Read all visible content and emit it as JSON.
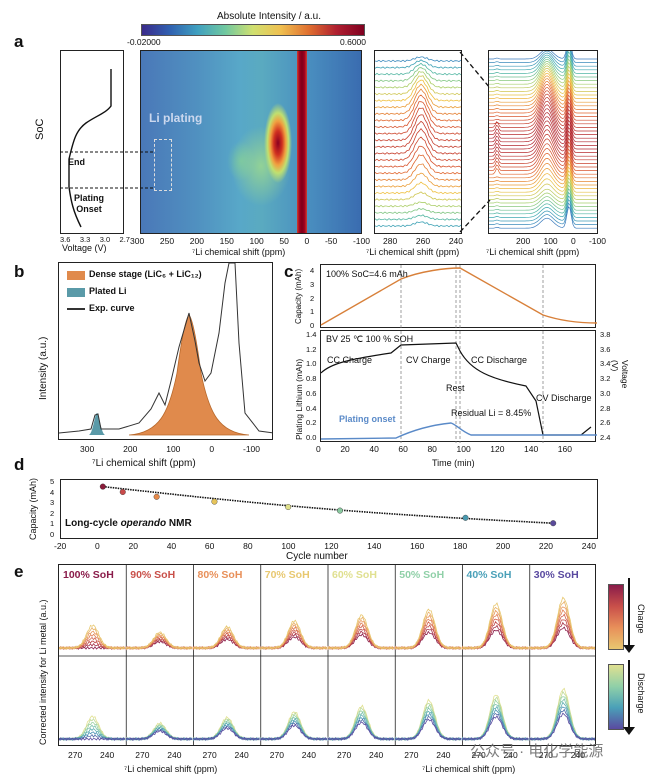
{
  "panel_labels": {
    "a": "a",
    "b": "b",
    "c": "c",
    "d": "d",
    "e": "e"
  },
  "panel_a": {
    "colorbar_title": "Absolute Intensity / a.u.",
    "colorbar_min": "-0.02000",
    "colorbar_max": "0.6000",
    "soc_label": "SoC",
    "end_label": "End",
    "plating_onset_label": "Plating\nOnset",
    "voltage_axis_label": "Voltage (V)",
    "voltage_ticks": [
      "3.6",
      "3.3",
      "3.0",
      "2.7"
    ],
    "li_plating_label": "Li plating",
    "shift_axis_label": "⁷Li chemical shift (ppm)",
    "heatmap_ticks": [
      "300",
      "250",
      "200",
      "150",
      "100",
      "50",
      "0",
      "-50",
      "-100"
    ],
    "zoom_ticks": [
      "280",
      "260",
      "240"
    ],
    "stack_ticks": [
      "200",
      "100",
      "0",
      "-100"
    ]
  },
  "panel_b": {
    "ylabel": "Intensity (a.u.)",
    "xlabel": "⁷Li chemical shift (ppm)",
    "legend": [
      "Dense stage (LiC₆ + LiC₁₂)",
      "Plated Li",
      "Exp. curve"
    ],
    "ticks": [
      "300",
      "200",
      "100",
      "0",
      "-100"
    ],
    "colors": {
      "dense": "#e08a4c",
      "plated": "#5a9aa8",
      "exp": "#333333"
    }
  },
  "panel_c": {
    "annotation_top": "100% SoC=4.6 mAh",
    "ylabel_top": "Capacity (mAh)",
    "top_ticks": [
      "4",
      "3",
      "2",
      "1",
      "0"
    ],
    "title_bottom": "BV 25 ℃ 100 % SOH",
    "ylabel_bottom": "Plating Lithium (mAh)",
    "ylabel_right": "Voltage (V)",
    "left_ticks": [
      "1.4",
      "1.2",
      "1.0",
      "0.8",
      "0.6",
      "0.4",
      "0.2",
      "0.0"
    ],
    "right_ticks": [
      "3.8",
      "3.6",
      "3.4",
      "3.2",
      "3.0",
      "2.8",
      "2.6",
      "2.4"
    ],
    "x_ticks": [
      "0",
      "20",
      "40",
      "60",
      "80",
      "100",
      "120",
      "140",
      "160"
    ],
    "xlabel": "Time (min)",
    "phases": [
      "CC Charge",
      "CV Charge",
      "CC Discharge",
      "Rest",
      "CV Discharge"
    ],
    "plating_onset": "Plating onset",
    "residual": "Residual Li = 8.45%"
  },
  "panel_d": {
    "ylabel": "Capacity (mAh)",
    "xlabel": "Cycle number",
    "annotation": "Long-cycle operando NMR",
    "y_ticks": [
      "5",
      "4",
      "3",
      "2",
      "1",
      "0"
    ],
    "x_ticks": [
      "-20",
      "0",
      "20",
      "40",
      "60",
      "80",
      "100",
      "120",
      "140",
      "160",
      "180",
      "200",
      "220",
      "240"
    ],
    "chart_data": {
      "type": "scatter",
      "x": [
        1,
        11,
        28,
        57,
        94,
        120,
        183,
        227
      ],
      "y": [
        4.45,
        4.0,
        3.6,
        3.2,
        2.75,
        2.45,
        1.85,
        1.4
      ],
      "colors": [
        "#8a1c3a",
        "#c94a4a",
        "#e68a4a",
        "#e6c45a",
        "#dfe08a",
        "#8ac9a0",
        "#4a9ab0",
        "#5a4a9a"
      ]
    }
  },
  "panel_e": {
    "ylabel": "Corrected intensity for Li metal (a.u.)",
    "xlabel": "⁷Li chemical shift (ppm)",
    "xlabel2": "⁷Li chemical shift (ppm)",
    "soh_labels": [
      "100% SoH",
      "90% SoH",
      "80% SoH",
      "70% SoH",
      "60% SoH",
      "50% SoH",
      "40% SoH",
      "30% SoH"
    ],
    "soh_colors": [
      "#8a1c4a",
      "#c9504a",
      "#e8905a",
      "#e8c870",
      "#e0e090",
      "#90d0a8",
      "#4aa0b8",
      "#5a4aa0"
    ],
    "charge_label": "Charge",
    "discharge_label": "Discharge",
    "ticks": [
      "270",
      "240"
    ]
  },
  "watermark": "公众号 · 电化学能源"
}
